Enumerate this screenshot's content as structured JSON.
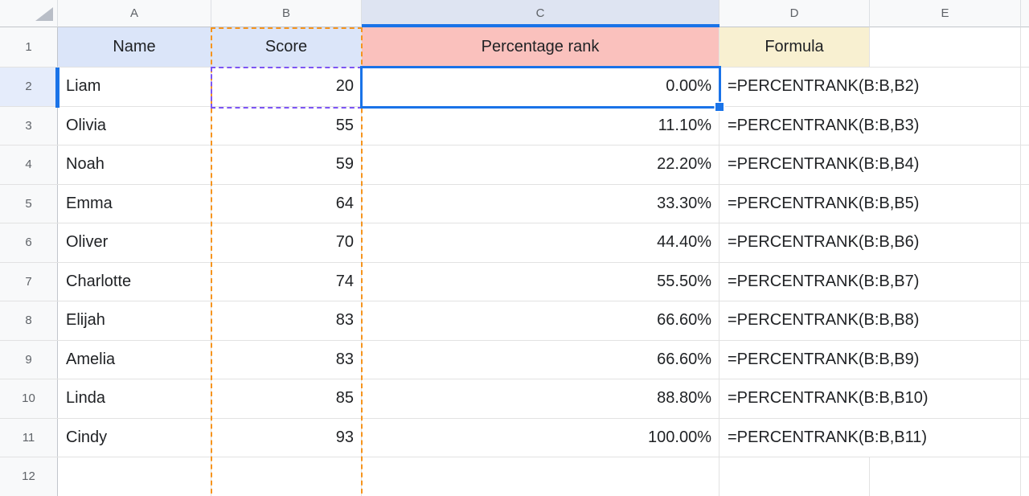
{
  "colors": {
    "selection_blue": "#1a73e8",
    "copied_range_orange": "#f6941d",
    "referenced_cell_purple": "#7d55f3",
    "name_score_header_fill": "#dbe5f9",
    "rank_header_fill": "#fac1bd",
    "formula_header_fill": "#f8f0d1"
  },
  "grid": {
    "column_headers": [
      "A",
      "B",
      "C",
      "D",
      "E"
    ],
    "row_headers": [
      "1",
      "2",
      "3",
      "4",
      "5",
      "6",
      "7",
      "8",
      "9",
      "10",
      "11",
      "12"
    ],
    "header_cells": {
      "name": "Name",
      "score": "Score",
      "rank": "Percentage rank",
      "formula": "Formula"
    },
    "rows": [
      {
        "name": "Liam",
        "score": "20",
        "rank": "0.00%",
        "formula": "=PERCENTRANK(B:B,B2)"
      },
      {
        "name": "Olivia",
        "score": "55",
        "rank": "11.10%",
        "formula": "=PERCENTRANK(B:B,B3)"
      },
      {
        "name": "Noah",
        "score": "59",
        "rank": "22.20%",
        "formula": "=PERCENTRANK(B:B,B4)"
      },
      {
        "name": "Emma",
        "score": "64",
        "rank": "33.30%",
        "formula": "=PERCENTRANK(B:B,B5)"
      },
      {
        "name": "Oliver",
        "score": "70",
        "rank": "44.40%",
        "formula": "=PERCENTRANK(B:B,B6)"
      },
      {
        "name": "Charlotte",
        "score": "74",
        "rank": "55.50%",
        "formula": "=PERCENTRANK(B:B,B7)"
      },
      {
        "name": "Elijah",
        "score": "83",
        "rank": "66.60%",
        "formula": "=PERCENTRANK(B:B,B8)"
      },
      {
        "name": "Amelia",
        "score": "83",
        "rank": "66.60%",
        "formula": "=PERCENTRANK(B:B,B9)"
      },
      {
        "name": "Linda",
        "score": "85",
        "rank": "88.80%",
        "formula": "=PERCENTRANK(B:B,B10)"
      },
      {
        "name": "Cindy",
        "score": "93",
        "rank": "100.00%",
        "formula": "=PERCENTRANK(B:B,B11)"
      }
    ]
  }
}
